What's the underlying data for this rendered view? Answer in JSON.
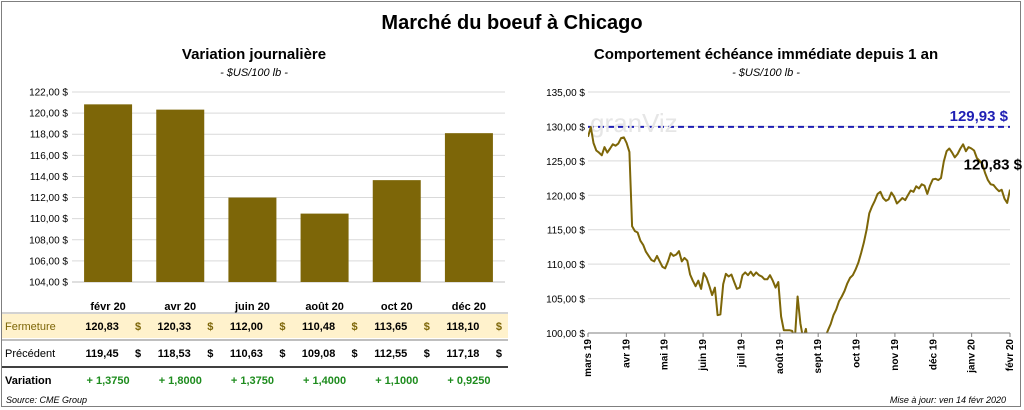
{
  "title": "Marché du boeuf à Chicago",
  "source": "Source: CME Group",
  "updated": "Mise à jour: ven 14 févr 2020",
  "watermark": "granViz",
  "colors": {
    "bar": "#7d6608",
    "line": "#7d6608",
    "ref": "#1f1fb4",
    "highlight": "#fff2cc",
    "positive": "#1e8c1e",
    "grid": "#d9d9d9"
  },
  "chart_data": [
    {
      "type": "bar",
      "title": "Variation journalière",
      "subtitle": "- $US/100 lb -",
      "categories": [
        "févr 20",
        "avr 20",
        "juin 20",
        "août 20",
        "oct 20",
        "déc 20"
      ],
      "values": [
        120.83,
        120.33,
        112.0,
        110.48,
        113.65,
        118.1
      ],
      "ylim": [
        104,
        122
      ],
      "yticks": [
        "104,00 $",
        "106,00 $",
        "108,00 $",
        "110,00 $",
        "112,00 $",
        "114,00 $",
        "116,00 $",
        "118,00 $",
        "120,00 $",
        "122,00 $"
      ],
      "grid": true,
      "table": {
        "rows": [
          {
            "label": "Fermeture",
            "values": [
              "120,83",
              "120,33",
              "112,00",
              "110,48",
              "113,65",
              "118,10"
            ],
            "unit": "$",
            "highlight": true
          },
          {
            "label": "Précédent",
            "values": [
              "119,45",
              "118,53",
              "110,63",
              "109,08",
              "112,55",
              "117,18"
            ],
            "unit": "$",
            "highlight": false
          },
          {
            "label": "Variation",
            "values": [
              "+ 1,3750",
              "+ 1,8000",
              "+ 1,3750",
              "+ 1,4000",
              "+ 1,1000",
              "+ 0,9250"
            ],
            "unit": "",
            "highlight": false,
            "positive": true
          }
        ]
      }
    },
    {
      "type": "line",
      "title": "Comportement  échéance immédiate depuis 1 an",
      "subtitle": "- $US/100 lb -",
      "ylim": [
        100,
        135
      ],
      "yticks": [
        "100,00 $",
        "105,00 $",
        "110,00 $",
        "115,00 $",
        "120,00 $",
        "125,00 $",
        "130,00 $",
        "135,00 $"
      ],
      "xticks": [
        "mars 19",
        "avr 19",
        "mai 19",
        "juin 19",
        "juil 19",
        "août 19",
        "sept 19",
        "oct 19",
        "nov 19",
        "déc 19",
        "janv 20",
        "févr 20"
      ],
      "grid": true,
      "reference": {
        "value": 129.93,
        "label": "129,93 $"
      },
      "last_label": "120,83 $",
      "y": [
        128.5,
        129.9,
        127.6,
        126.5,
        126.2,
        125.8,
        127.0,
        126.2,
        126.8,
        127.4,
        127.2,
        127.5,
        128.3,
        128.4,
        127.6,
        126.3,
        115.5,
        114.8,
        114.6,
        113.4,
        112.8,
        111.8,
        111.2,
        110.6,
        110.4,
        111.2,
        110.4,
        109.6,
        109.4,
        110.4,
        111.6,
        111.2,
        111.4,
        111.9,
        110.4,
        110.9,
        110.5,
        108.5,
        107.6,
        106.8,
        107.6,
        106.4,
        108.7,
        108.0,
        106.8,
        105.5,
        106.6,
        102.6,
        102.7,
        107.1,
        108.6,
        108.2,
        108.5,
        107.4,
        106.4,
        106.6,
        108.4,
        108.8,
        108.4,
        108.9,
        108.3,
        108.8,
        108.4,
        108.2,
        107.8,
        107.8,
        108.4,
        107.6,
        106.6,
        107.4,
        102.4,
        100.4,
        100.4,
        100.4,
        100.3,
        99.2,
        105.3,
        101.4,
        99.2,
        100.6,
        97.6,
        96.8,
        97.6,
        98.0,
        96.6,
        97.8,
        99.4,
        100.4,
        101.3,
        102.6,
        103.4,
        104.6,
        105.3,
        106.1,
        107.2,
        108.0,
        108.4,
        109.2,
        110.2,
        111.6,
        113.1,
        115.0,
        117.4,
        118.4,
        119.2,
        120.2,
        120.5,
        119.6,
        119.2,
        119.4,
        120.4,
        119.8,
        118.8,
        119.2,
        119.6,
        119.3,
        120.0,
        120.7,
        120.5,
        121.3,
        121.0,
        121.6,
        121.4,
        120.2,
        121.4,
        122.3,
        122.4,
        122.2,
        122.5,
        124.9,
        126.4,
        126.8,
        126.2,
        125.5,
        126.0,
        126.8,
        127.4,
        126.4,
        127.0,
        126.8,
        126.5,
        125.4,
        125.0,
        124.5,
        123.2,
        122.2,
        121.6,
        121.5,
        121.0,
        120.6,
        120.8,
        119.5,
        118.9,
        120.83
      ]
    }
  ]
}
